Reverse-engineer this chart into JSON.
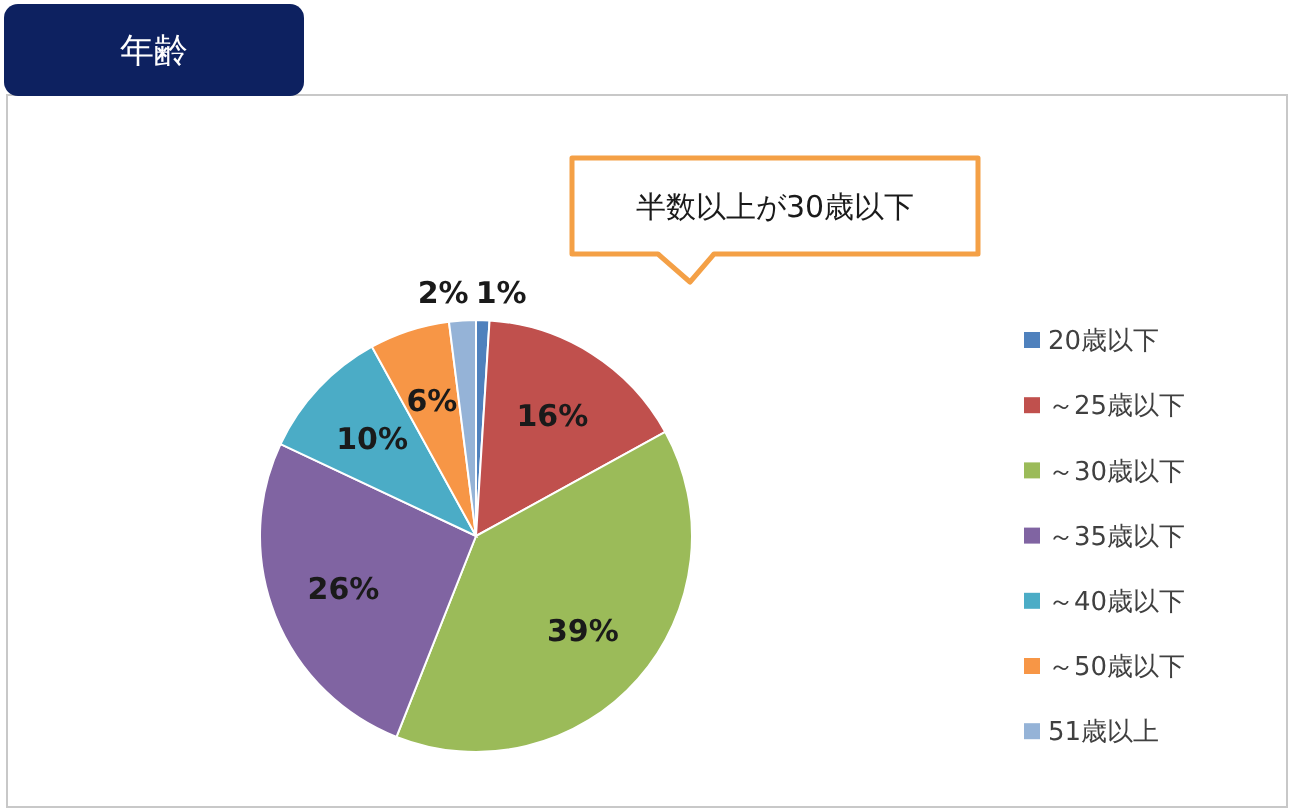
{
  "chart_data": {
    "type": "pie",
    "title": "年齢",
    "categories": [
      "20歳以下",
      "～25歳以下",
      "～30歳以下",
      "～35歳以下",
      "～40歳以下",
      "～50歳以下",
      "51歳以上"
    ],
    "values": [
      1,
      16,
      39,
      26,
      10,
      6,
      2
    ],
    "value_labels": [
      "1%",
      "16%",
      "39%",
      "26%",
      "10%",
      "6%",
      "2%"
    ],
    "colors": [
      "#4f81bd",
      "#c0504d",
      "#9bbb59",
      "#8064a2",
      "#4bacc6",
      "#f79646",
      "#95b3d7"
    ],
    "legend": "right",
    "annotations": [
      "半数以上が30歳以下"
    ]
  }
}
